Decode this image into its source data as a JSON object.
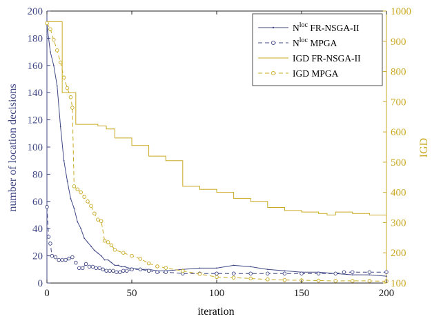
{
  "colors": {
    "left_axis": "#3f4785",
    "right_axis": "#c9a820",
    "frame": "#222222"
  },
  "chart_data": {
    "type": "line",
    "xlabel": "iteration",
    "ylabel_left": "number of location decisions",
    "ylabel_right": "IGD",
    "xlim": [
      0,
      200
    ],
    "ylim_left": [
      0,
      200
    ],
    "ylim_right": [
      100,
      1000
    ],
    "x_ticks": [
      "0",
      "50",
      "100",
      "150",
      "200"
    ],
    "y_left_ticks": [
      "0",
      "20",
      "40",
      "60",
      "80",
      "100",
      "120",
      "140",
      "160",
      "180",
      "200"
    ],
    "y_right_ticks": [
      "100",
      "200",
      "300",
      "400",
      "500",
      "600",
      "700",
      "800",
      "900",
      "1000"
    ],
    "grid": false,
    "legend_position": "top-right",
    "legend": [
      {
        "main": "N",
        "sup": "loc",
        "rest": " FR-NSGA-II"
      },
      {
        "main": "N",
        "sup": "loc",
        "rest": " MPGA"
      },
      {
        "main": "IGD FR-NSGA-II",
        "sup": "",
        "rest": ""
      },
      {
        "main": "IGD MPGA",
        "sup": "",
        "rest": ""
      }
    ],
    "series": [
      {
        "name": "Nloc FR-NSGA-II",
        "axis": "left",
        "style": "solid-dot",
        "color": "#3f4785",
        "points": [
          [
            0,
            190
          ],
          [
            2,
            170
          ],
          [
            4,
            160
          ],
          [
            6,
            145
          ],
          [
            8,
            115
          ],
          [
            10,
            90
          ],
          [
            12,
            75
          ],
          [
            14,
            62
          ],
          [
            16,
            55
          ],
          [
            18,
            45
          ],
          [
            20,
            40
          ],
          [
            22,
            33
          ],
          [
            24,
            30
          ],
          [
            26,
            27
          ],
          [
            28,
            24
          ],
          [
            30,
            22
          ],
          [
            32,
            20
          ],
          [
            34,
            17
          ],
          [
            36,
            17
          ],
          [
            38,
            15
          ],
          [
            40,
            13
          ],
          [
            42,
            13
          ],
          [
            44,
            12
          ],
          [
            46,
            12
          ],
          [
            48,
            11
          ],
          [
            50,
            11
          ],
          [
            55,
            10
          ],
          [
            60,
            10
          ],
          [
            65,
            9
          ],
          [
            70,
            9
          ],
          [
            80,
            10
          ],
          [
            90,
            11
          ],
          [
            100,
            11
          ],
          [
            110,
            13
          ],
          [
            120,
            12
          ],
          [
            130,
            10
          ],
          [
            140,
            9
          ],
          [
            150,
            8
          ],
          [
            160,
            8
          ],
          [
            170,
            7
          ],
          [
            180,
            6
          ],
          [
            190,
            6
          ],
          [
            200,
            5
          ]
        ]
      },
      {
        "name": "Nloc MPGA",
        "axis": "left",
        "style": "dashed-circle",
        "color": "#3f4785",
        "points": [
          [
            0,
            56
          ],
          [
            1,
            34
          ],
          [
            2,
            29
          ],
          [
            3,
            20
          ],
          [
            5,
            19
          ],
          [
            7,
            17
          ],
          [
            9,
            17
          ],
          [
            11,
            17
          ],
          [
            13,
            18
          ],
          [
            15,
            19
          ],
          [
            17,
            15
          ],
          [
            19,
            11
          ],
          [
            21,
            11
          ],
          [
            23,
            14
          ],
          [
            25,
            12
          ],
          [
            27,
            12
          ],
          [
            29,
            11
          ],
          [
            31,
            11
          ],
          [
            33,
            10
          ],
          [
            35,
            9
          ],
          [
            37,
            9
          ],
          [
            39,
            9
          ],
          [
            41,
            8
          ],
          [
            43,
            8
          ],
          [
            45,
            9
          ],
          [
            47,
            9
          ],
          [
            50,
            10
          ],
          [
            55,
            10
          ],
          [
            60,
            9
          ],
          [
            65,
            8
          ],
          [
            70,
            8
          ],
          [
            80,
            7
          ],
          [
            90,
            7
          ],
          [
            100,
            7
          ],
          [
            110,
            7
          ],
          [
            120,
            7
          ],
          [
            130,
            7
          ],
          [
            140,
            7
          ],
          [
            150,
            7
          ],
          [
            160,
            7
          ],
          [
            170,
            7
          ],
          [
            175,
            8
          ],
          [
            180,
            8
          ],
          [
            190,
            8
          ],
          [
            200,
            8
          ]
        ]
      },
      {
        "name": "IGD FR-NSGA-II",
        "axis": "right",
        "style": "step",
        "color": "#c9a820",
        "points": [
          [
            0,
            965
          ],
          [
            8,
            965
          ],
          [
            9,
            730
          ],
          [
            16,
            730
          ],
          [
            17,
            625
          ],
          [
            30,
            620
          ],
          [
            35,
            610
          ],
          [
            40,
            580
          ],
          [
            50,
            555
          ],
          [
            60,
            520
          ],
          [
            70,
            505
          ],
          [
            80,
            420
          ],
          [
            90,
            410
          ],
          [
            100,
            400
          ],
          [
            110,
            380
          ],
          [
            120,
            370
          ],
          [
            130,
            350
          ],
          [
            140,
            340
          ],
          [
            150,
            335
          ],
          [
            160,
            330
          ],
          [
            165,
            325
          ],
          [
            170,
            335
          ],
          [
            180,
            330
          ],
          [
            190,
            325
          ],
          [
            200,
            335
          ]
        ]
      },
      {
        "name": "IGD MPGA",
        "axis": "right",
        "style": "dashed-circle",
        "color": "#c9a820",
        "points": [
          [
            0,
            960
          ],
          [
            2,
            940
          ],
          [
            4,
            905
          ],
          [
            6,
            870
          ],
          [
            8,
            830
          ],
          [
            10,
            780
          ],
          [
            12,
            745
          ],
          [
            14,
            715
          ],
          [
            15,
            680
          ],
          [
            16,
            420
          ],
          [
            18,
            410
          ],
          [
            20,
            400
          ],
          [
            22,
            385
          ],
          [
            24,
            370
          ],
          [
            26,
            355
          ],
          [
            28,
            330
          ],
          [
            30,
            310
          ],
          [
            32,
            305
          ],
          [
            34,
            240
          ],
          [
            36,
            235
          ],
          [
            38,
            225
          ],
          [
            40,
            210
          ],
          [
            45,
            200
          ],
          [
            50,
            190
          ],
          [
            55,
            180
          ],
          [
            60,
            165
          ],
          [
            65,
            155
          ],
          [
            70,
            150
          ],
          [
            80,
            140
          ],
          [
            90,
            130
          ],
          [
            100,
            120
          ],
          [
            110,
            118
          ],
          [
            120,
            115
          ],
          [
            130,
            112
          ],
          [
            140,
            110
          ],
          [
            150,
            109
          ],
          [
            160,
            108
          ],
          [
            170,
            107
          ],
          [
            180,
            107
          ],
          [
            190,
            107
          ],
          [
            200,
            106
          ]
        ]
      }
    ]
  }
}
